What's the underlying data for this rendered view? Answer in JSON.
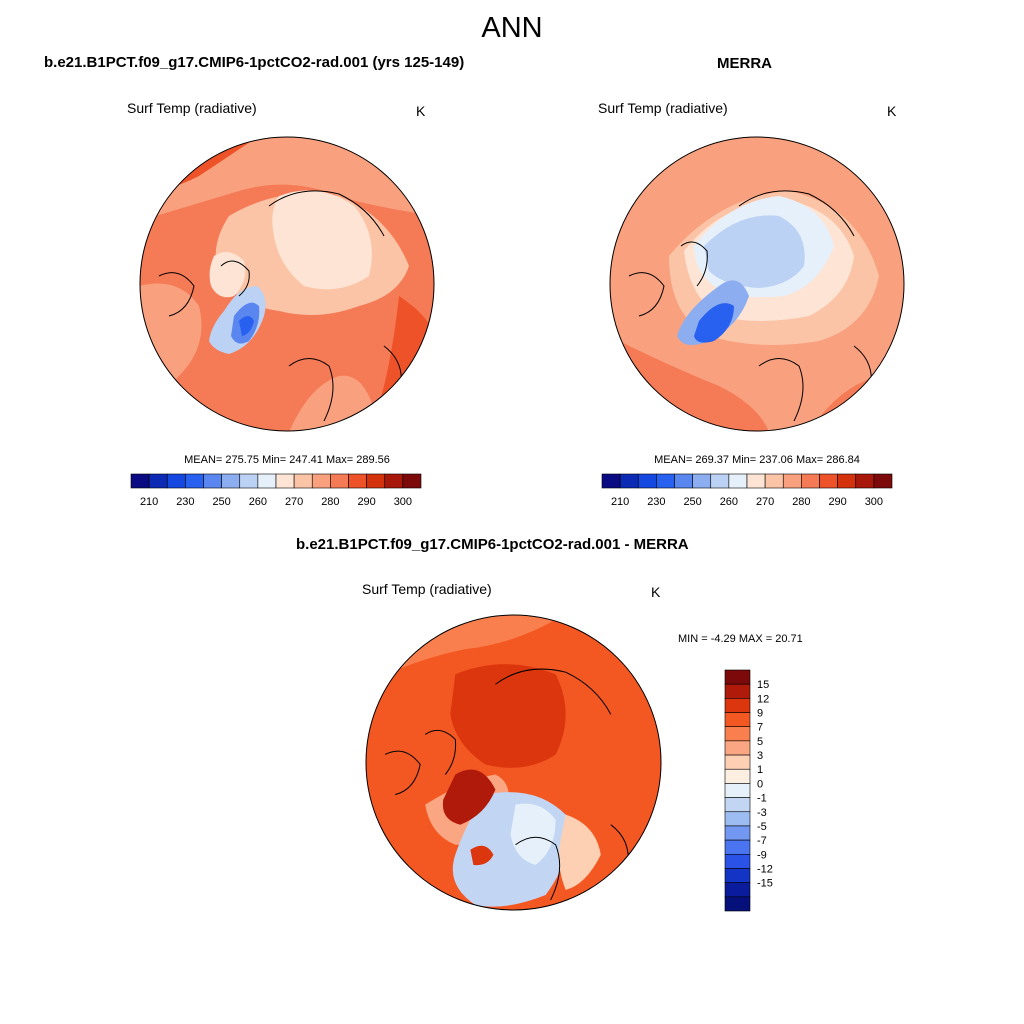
{
  "figure": {
    "title": "ANN"
  },
  "panels": {
    "model": {
      "title": "b.e21.B1PCT.f09_g17.CMIP6-1pctCO2-rad.001 (yrs 125-149)",
      "variable": "Surf Temp (radiative)",
      "units": "K",
      "stats": "MEAN= 275.75  Min= 247.41  Max= 289.56"
    },
    "obs": {
      "title": "MERRA",
      "variable": "Surf Temp (radiative)",
      "units": "K",
      "stats": "MEAN= 269.37  Min= 237.06  Max= 286.84"
    },
    "diff": {
      "title": "b.e21.B1PCT.f09_g17.CMIP6-1pctCO2-rad.001 - MERRA",
      "variable": "Surf Temp (radiative)",
      "units": "K",
      "stats": "MIN =  -4.29 MAX =  20.71"
    }
  },
  "colorbars": {
    "abs": {
      "colors": [
        "#0a0a82",
        "#0c2ab4",
        "#1448e0",
        "#2860f0",
        "#5a86f0",
        "#8caef0",
        "#bcd2f4",
        "#e6f0fa",
        "#fde4d4",
        "#fcc4a6",
        "#f9a07e",
        "#f57a56",
        "#ee5228",
        "#d4320c",
        "#a8180a",
        "#7c0a0a"
      ],
      "ticks": [
        "210",
        "230",
        "250",
        "260",
        "270",
        "280",
        "290",
        "300"
      ]
    },
    "diff": {
      "colors": [
        "#7c0a0a",
        "#b01a0a",
        "#dc360e",
        "#f45822",
        "#f9804e",
        "#fba682",
        "#fdd0b4",
        "#fdeee2",
        "#e6f0fa",
        "#c2d6f4",
        "#9cbcf2",
        "#7298f2",
        "#4a74f0",
        "#2a52e6",
        "#1434c6",
        "#0a1c9c",
        "#06107a"
      ],
      "ticks": [
        "15",
        "12",
        "9",
        "7",
        "5",
        "3",
        "1",
        "0",
        "-1",
        "-3",
        "-5",
        "-7",
        "-9",
        "-12",
        "-15"
      ]
    }
  }
}
